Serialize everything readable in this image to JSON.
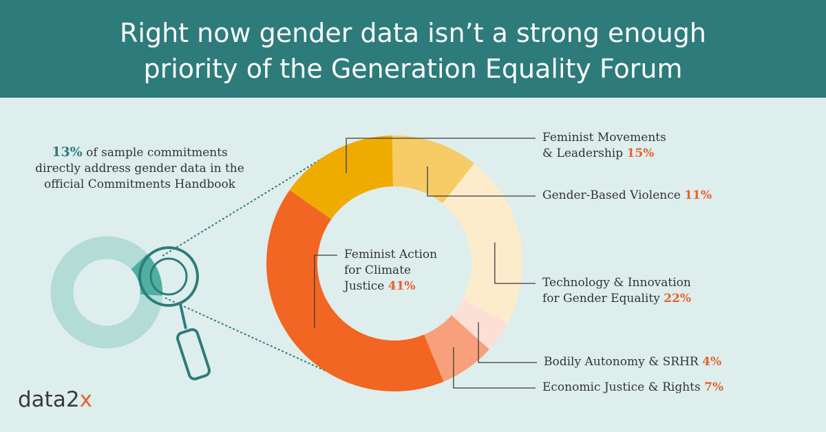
{
  "title_line1": "Right now gender data isn’t a strong enough",
  "title_line2": "priority of the Generation Equality Forum",
  "callout": {
    "pct": "13%",
    "text": " of sample commitments directly address gender data in the official Commitments Handbook",
    "value": 13
  },
  "logo": {
    "text": "data2",
    "mark": "x"
  },
  "colors": {
    "header": "#2d7b7a",
    "background": "#ddeeed",
    "accent": "#e8612b",
    "teal_light": "#b3dcd7",
    "teal_highlight": "#4fafa0"
  },
  "chart_data": {
    "type": "pie",
    "donut": true,
    "slices": [
      {
        "label": "Feminist Movements & Leadership",
        "value": 15,
        "pct_text": "15%",
        "color": "#f0ab00"
      },
      {
        "label": "Gender-Based Violence",
        "value": 11,
        "pct_text": "11%",
        "color": "#f7cb65"
      },
      {
        "label": "Technology & Innovation for Gender Equality",
        "value": 22,
        "pct_text": "22%",
        "color": "#fdeccb"
      },
      {
        "label": "Bodily Autonomy & SRHR",
        "value": 4,
        "pct_text": "4%",
        "color": "#fde0d5"
      },
      {
        "label": "Economic Justice & Rights",
        "value": 7,
        "pct_text": "7%",
        "color": "#f7a07b"
      },
      {
        "label": "Feminist Action for Climate Justice",
        "value": 41,
        "pct_text": "41%",
        "color": "#f26522"
      }
    ],
    "label_text": {
      "movements_1": "Feminist Movements",
      "movements_2": "& Leadership ",
      "gbv": "Gender-Based Violence ",
      "tech_1": "Technology & Innovation",
      "tech_2": "for Gender Equality ",
      "bodily": "Bodily Autonomy & SRHR ",
      "economic": "Economic Justice & Rights ",
      "climate_1": "Feminist Action",
      "climate_2": "for Climate",
      "climate_3": "Justice "
    }
  }
}
